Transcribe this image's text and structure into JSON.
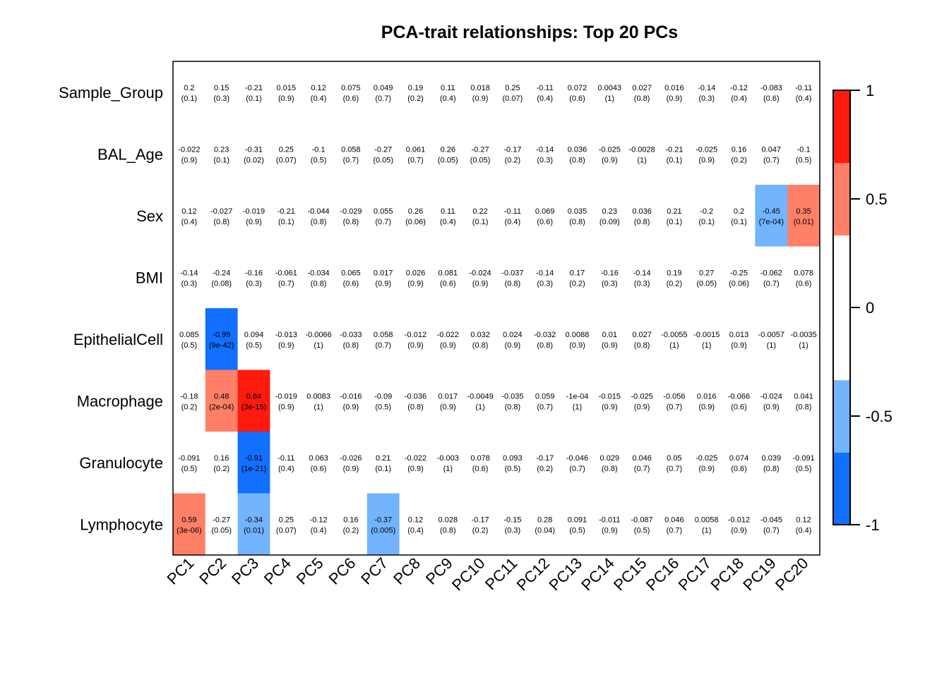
{
  "chart_data": {
    "type": "heatmap",
    "title": "PCA-trait relationships: Top 20 PCs",
    "rows": [
      "Sample_Group",
      "BAL_Age",
      "Sex",
      "BMI",
      "EpithelialCell",
      "Macrophage",
      "Granulocyte",
      "Lymphocyte"
    ],
    "columns": [
      "PC1",
      "PC2",
      "PC3",
      "PC4",
      "PC5",
      "PC6",
      "PC7",
      "PC8",
      "PC9",
      "PC10",
      "PC11",
      "PC12",
      "PC13",
      "PC14",
      "PC15",
      "PC16",
      "PC17",
      "PC18",
      "PC19",
      "PC20"
    ],
    "values": [
      [
        "0.2",
        "0.15",
        "-0.21",
        "0.015",
        "0.12",
        "0.075",
        "0.049",
        "0.19",
        "0.11",
        "0.018",
        "0.25",
        "-0.11",
        "0.072",
        "0.0043",
        "0.027",
        "0.016",
        "-0.14",
        "-0.12",
        "-0.083",
        "-0.11"
      ],
      [
        "-0.022",
        "0.23",
        "-0.31",
        "0.25",
        "-0.1",
        "0.058",
        "-0.27",
        "0.061",
        "0.26",
        "-0.27",
        "-0.17",
        "-0.14",
        "0.036",
        "-0.025",
        "-0.0028",
        "-0.21",
        "-0.025",
        "0.16",
        "0.047",
        "-0.1"
      ],
      [
        "0.12",
        "-0.027",
        "-0.019",
        "-0.21",
        "-0.044",
        "-0.029",
        "0.055",
        "0.26",
        "0.11",
        "0.22",
        "-0.11",
        "0.069",
        "0.035",
        "0.23",
        "0.036",
        "0.21",
        "-0.2",
        "0.2",
        "-0.45",
        "0.35"
      ],
      [
        "-0.14",
        "-0.24",
        "-0.16",
        "-0.061",
        "-0.034",
        "0.065",
        "0.017",
        "0.026",
        "0.081",
        "-0.024",
        "-0.037",
        "-0.14",
        "0.17",
        "-0.16",
        "-0.14",
        "0.19",
        "0.27",
        "-0.25",
        "-0.062",
        "0.078"
      ],
      [
        "0.085",
        "-0.99",
        "0.094",
        "-0.013",
        "-0.0066",
        "-0.033",
        "0.058",
        "-0.012",
        "-0.022",
        "0.032",
        "0.024",
        "-0.032",
        "0.0088",
        "0.01",
        "0.027",
        "-0.0055",
        "-0.0015",
        "0.013",
        "-0.0057",
        "-0.0035"
      ],
      [
        "-0.18",
        "0.48",
        "0.84",
        "-0.019",
        "0.0083",
        "-0.016",
        "-0.09",
        "-0.036",
        "0.017",
        "-0.0049",
        "-0.035",
        "0.059",
        "-1e-04",
        "-0.015",
        "-0.025",
        "-0.056",
        "0.016",
        "-0.066",
        "-0.024",
        "0.041"
      ],
      [
        "-0.091",
        "0.16",
        "-0.91",
        "-0.11",
        "0.063",
        "-0.026",
        "0.21",
        "-0.022",
        "-0.003",
        "0.078",
        "0.093",
        "-0.17",
        "-0.046",
        "0.029",
        "0.046",
        "0.05",
        "-0.025",
        "0.074",
        "0.039",
        "-0.091"
      ],
      [
        "0.59",
        "-0.27",
        "-0.34",
        "0.25",
        "-0.12",
        "0.16",
        "-0.37",
        "0.12",
        "0.028",
        "-0.17",
        "-0.15",
        "0.28",
        "0.091",
        "-0.011",
        "-0.087",
        "0.046",
        "0.0058",
        "-0.012",
        "-0.045",
        "0.12"
      ]
    ],
    "pvalues": [
      [
        "(0.1)",
        "(0.3)",
        "(0.1)",
        "(0.9)",
        "(0.4)",
        "(0.6)",
        "(0.7)",
        "(0.2)",
        "(0.4)",
        "(0.9)",
        "(0.07)",
        "(0.4)",
        "(0.6)",
        "(1)",
        "(0.8)",
        "(0.9)",
        "(0.3)",
        "(0.4)",
        "(0.6)",
        "(0.4)"
      ],
      [
        "(0.9)",
        "(0.1)",
        "(0.02)",
        "(0.07)",
        "(0.5)",
        "(0.7)",
        "(0.05)",
        "(0.7)",
        "(0.05)",
        "(0.05)",
        "(0.2)",
        "(0.3)",
        "(0.8)",
        "(0.9)",
        "(1)",
        "(0.1)",
        "(0.9)",
        "(0.2)",
        "(0.7)",
        "(0.5)"
      ],
      [
        "(0.4)",
        "(0.8)",
        "(0.9)",
        "(0.1)",
        "(0.8)",
        "(0.8)",
        "(0.7)",
        "(0.06)",
        "(0.4)",
        "(0.1)",
        "(0.4)",
        "(0.6)",
        "(0.8)",
        "(0.09)",
        "(0.8)",
        "(0.1)",
        "(0.1)",
        "(0.1)",
        "(7e-04)",
        "(0.01)"
      ],
      [
        "(0.3)",
        "(0.08)",
        "(0.3)",
        "(0.7)",
        "(0.8)",
        "(0.6)",
        "(0.9)",
        "(0.9)",
        "(0.6)",
        "(0.9)",
        "(0.8)",
        "(0.3)",
        "(0.2)",
        "(0.3)",
        "(0.3)",
        "(0.2)",
        "(0.05)",
        "(0.06)",
        "(0.7)",
        "(0.6)"
      ],
      [
        "(0.5)",
        "(9e-42)",
        "(0.5)",
        "(0.9)",
        "(1)",
        "(0.8)",
        "(0.7)",
        "(0.9)",
        "(0.9)",
        "(0.8)",
        "(0.9)",
        "(0.8)",
        "(0.9)",
        "(0.9)",
        "(0.8)",
        "(1)",
        "(1)",
        "(0.9)",
        "(1)",
        "(1)"
      ],
      [
        "(0.2)",
        "(2e-04)",
        "(3e-15)",
        "(0.9)",
        "(1)",
        "(0.9)",
        "(0.5)",
        "(0.8)",
        "(0.9)",
        "(1)",
        "(0.8)",
        "(0.7)",
        "(1)",
        "(0.9)",
        "(0.9)",
        "(0.7)",
        "(0.9)",
        "(0.6)",
        "(0.9)",
        "(0.8)"
      ],
      [
        "(0.5)",
        "(0.2)",
        "(1e-21)",
        "(0.4)",
        "(0.6)",
        "(0.9)",
        "(0.1)",
        "(0.9)",
        "(1)",
        "(0.6)",
        "(0.5)",
        "(0.2)",
        "(0.7)",
        "(0.8)",
        "(0.7)",
        "(0.7)",
        "(0.9)",
        "(0.6)",
        "(0.8)",
        "(0.5)"
      ],
      [
        "(3e-06)",
        "(0.05)",
        "(0.01)",
        "(0.07)",
        "(0.4)",
        "(0.2)",
        "(0.005)",
        "(0.4)",
        "(0.8)",
        "(0.2)",
        "(0.3)",
        "(0.04)",
        "(0.5)",
        "(0.9)",
        "(0.5)",
        "(0.7)",
        "(1)",
        "(0.9)",
        "(0.7)",
        "(0.4)"
      ]
    ],
    "color_scale": {
      "range": [
        -1,
        1
      ],
      "breaks": [
        -1,
        -0.6667,
        -0.3333,
        0.3333,
        0.6667,
        1
      ],
      "colors": [
        "#1170FF",
        "#73B4FF",
        "#FFFFFF",
        "#FF8066",
        "#FF1A0D"
      ]
    },
    "legend": {
      "ticks": [
        "1",
        "0.5",
        "0",
        "-0.5",
        "-1"
      ],
      "tick_values": [
        1,
        0.5,
        0,
        -0.5,
        -1
      ],
      "placement": "right"
    }
  }
}
